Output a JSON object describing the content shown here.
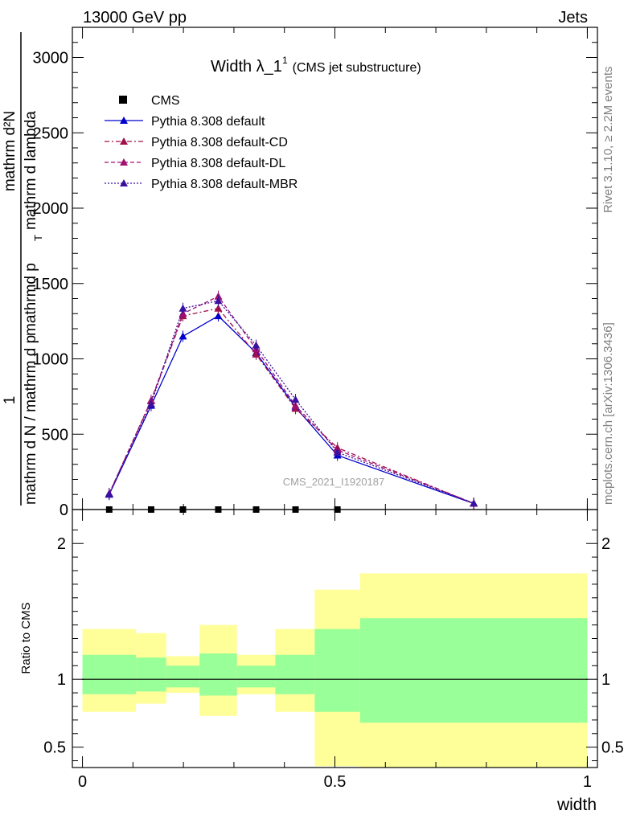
{
  "header": {
    "left": "13000 GeV pp",
    "right": "Jets"
  },
  "title": {
    "main": "Width λ_1",
    "sup": "1",
    "sub": "(CMS jet substructure)"
  },
  "side_labels": {
    "rivet": "Rivet 3.1.10, ≥ 2.2M events",
    "mcplots": "mcplots.cern.ch [arXiv:1306.3436]"
  },
  "watermark": "CMS_2021_I1920187",
  "y_axis_label": {
    "numerator_one": "1",
    "numerator_dn": "mathrm d²N",
    "denominator_a": "mathrm d N / mathrm d p",
    "denominator_b": "mathrmd p",
    "denominator_c": "mathrm d lambda",
    "sub_t": "T"
  },
  "ratio_ylabel": "Ratio to CMS",
  "x_axis_label": "width",
  "legend": [
    {
      "label": "CMS",
      "style": "square",
      "color": "#000000",
      "dash": ""
    },
    {
      "label": "Pythia 8.308 default",
      "style": "line",
      "color": "#0000cc",
      "dash": ""
    },
    {
      "label": "Pythia 8.308 default-CD",
      "style": "line",
      "color": "#a0104a",
      "dash": "6,3,2,3"
    },
    {
      "label": "Pythia 8.308 default-DL",
      "style": "line",
      "color": "#a01070",
      "dash": "5,3"
    },
    {
      "label": "Pythia 8.308 default-MBR",
      "style": "line",
      "color": "#3a10a0",
      "dash": "2,2"
    }
  ],
  "chart_data": [
    {
      "type": "line",
      "panel": "main",
      "xlim": [
        -0.02,
        1.02
      ],
      "ylim": [
        0,
        3200
      ],
      "y_ticks": [
        0,
        500,
        1000,
        1500,
        2000,
        2500,
        3000
      ],
      "y_tick_labels": [
        "0",
        "500",
        "1000",
        "1500",
        "2000",
        "2500",
        "3000"
      ],
      "x": [
        0.053,
        0.136,
        0.199,
        0.269,
        0.344,
        0.422,
        0.505,
        0.775
      ],
      "series": [
        {
          "name": "CMS",
          "color": "#000000",
          "values": [
            0,
            0,
            0,
            0,
            0,
            0,
            0,
            null
          ]
        },
        {
          "name": "Pythia 8.308 default",
          "color": "#0000cc",
          "values": [
            100,
            690,
            1150,
            1285,
            1040,
            680,
            360,
            40
          ]
        },
        {
          "name": "Pythia 8.308 default-CD",
          "color": "#a0104a",
          "values": [
            105,
            720,
            1285,
            1335,
            1030,
            670,
            410,
            40
          ]
        },
        {
          "name": "Pythia 8.308 default-DL",
          "color": "#a01070",
          "values": [
            105,
            725,
            1300,
            1415,
            1065,
            690,
            395,
            42
          ]
        },
        {
          "name": "Pythia 8.308 default-MBR",
          "color": "#3a10a0",
          "values": [
            105,
            700,
            1335,
            1385,
            1090,
            730,
            380,
            42
          ]
        }
      ]
    },
    {
      "type": "area",
      "panel": "ratio",
      "xlim": [
        -0.02,
        1.02
      ],
      "ylim": [
        0.35,
        2.25
      ],
      "y_ticks": [
        0.5,
        1,
        2
      ],
      "y_tick_labels": [
        "0.5",
        "1",
        "2"
      ],
      "x_ticks": [
        0,
        0.5,
        1
      ],
      "x_tick_labels": [
        "0",
        "0.5",
        "1"
      ],
      "reference": 1.0,
      "bins": [
        {
          "lo": 0.0,
          "hi": 0.106,
          "yellow": [
            0.76,
            1.37
          ],
          "green": [
            0.89,
            1.18
          ]
        },
        {
          "lo": 0.106,
          "hi": 0.166,
          "yellow": [
            0.82,
            1.34
          ],
          "green": [
            0.91,
            1.16
          ]
        },
        {
          "lo": 0.166,
          "hi": 0.232,
          "yellow": [
            0.9,
            1.17
          ],
          "green": [
            0.94,
            1.1
          ]
        },
        {
          "lo": 0.232,
          "hi": 0.306,
          "yellow": [
            0.73,
            1.4
          ],
          "green": [
            0.88,
            1.19
          ]
        },
        {
          "lo": 0.306,
          "hi": 0.382,
          "yellow": [
            0.89,
            1.18
          ],
          "green": [
            0.94,
            1.1
          ]
        },
        {
          "lo": 0.382,
          "hi": 0.46,
          "yellow": [
            0.76,
            1.37
          ],
          "green": [
            0.89,
            1.18
          ]
        },
        {
          "lo": 0.46,
          "hi": 0.55,
          "yellow": [
            0.36,
            1.66
          ],
          "green": [
            0.76,
            1.37
          ]
        },
        {
          "lo": 0.55,
          "hi": 1.0,
          "yellow": [
            0.35,
            1.78
          ],
          "green": [
            0.68,
            1.45
          ]
        }
      ]
    }
  ]
}
